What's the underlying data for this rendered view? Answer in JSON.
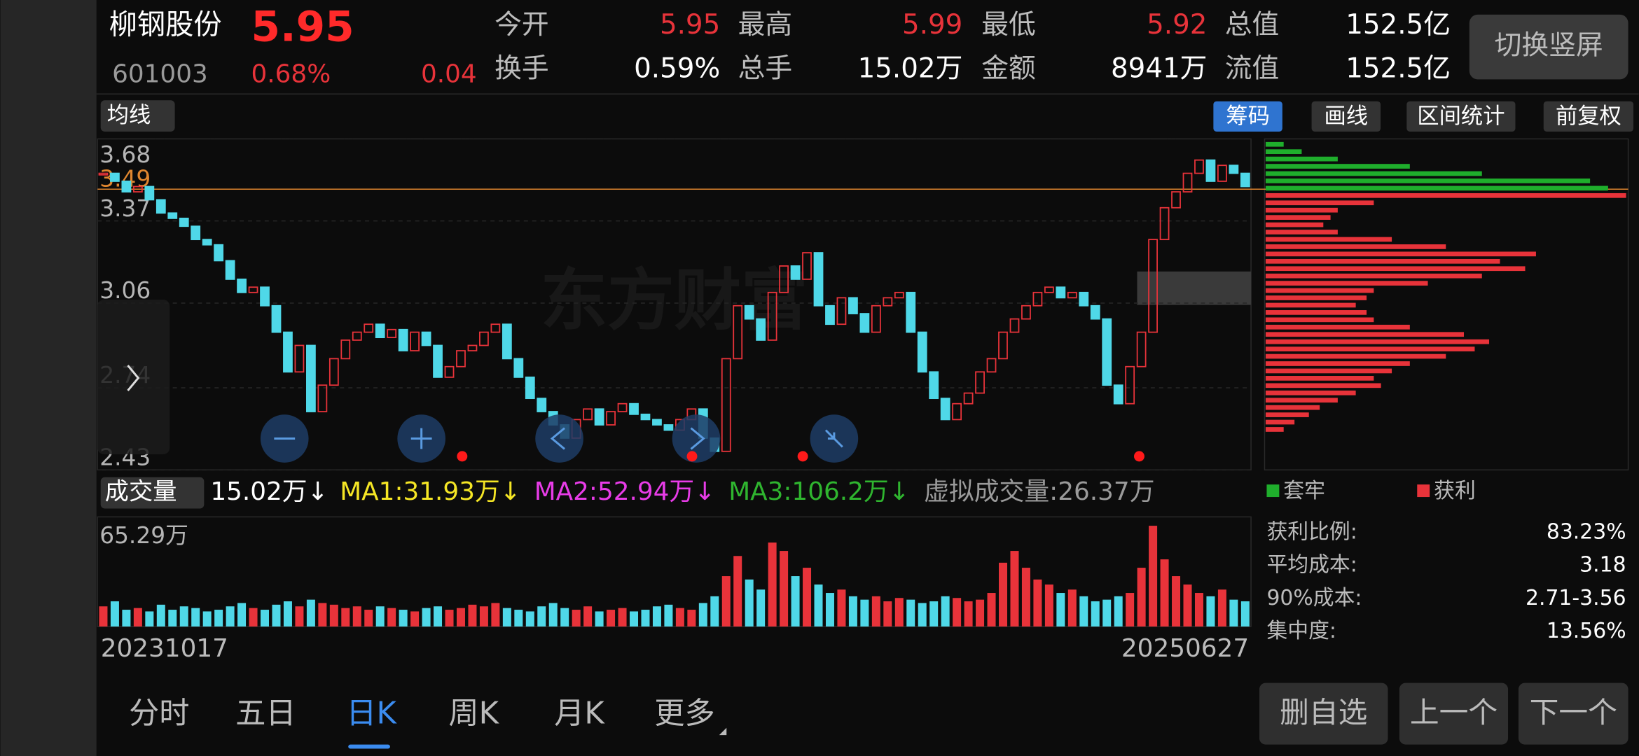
{
  "header": {
    "name": "柳钢股份",
    "price": "5.95",
    "code": "601003",
    "change_pct": "0.68%",
    "change": "0.04",
    "button": "切换竖屏",
    "stats": [
      {
        "label": "今开",
        "value": "5.95",
        "color": "#e8333a"
      },
      {
        "label": "最高",
        "value": "5.99",
        "color": "#e8333a"
      },
      {
        "label": "最低",
        "value": "5.92",
        "color": "#e8333a"
      },
      {
        "label": "总值",
        "value": "152.5亿",
        "color": "#ffffff"
      },
      {
        "label": "换手",
        "value": "0.59%",
        "color": "#ffffff"
      },
      {
        "label": "总手",
        "value": "15.02万",
        "color": "#ffffff"
      },
      {
        "label": "金额",
        "value": "8941万",
        "color": "#ffffff"
      },
      {
        "label": "流值",
        "value": "152.5亿",
        "color": "#ffffff"
      }
    ]
  },
  "toolbar": {
    "ma_menu": "均线",
    "tools": [
      "筹码",
      "画线",
      "区间统计",
      "前复权"
    ]
  },
  "chart_data": [
    {
      "type": "candlestick",
      "up_color": "#e8333a",
      "down_color": "#4fd8e8",
      "ylim": [
        2.43,
        3.68
      ],
      "yticks": [
        3.68,
        3.37,
        3.06,
        2.74,
        2.43
      ],
      "price_line": 3.49,
      "x_labels": [
        "20231017",
        "20250627"
      ],
      "close": [
        3.55,
        3.52,
        3.48,
        3.5,
        3.45,
        3.4,
        3.38,
        3.35,
        3.3,
        3.28,
        3.22,
        3.15,
        3.1,
        3.12,
        3.05,
        2.95,
        2.8,
        2.9,
        2.65,
        2.75,
        2.85,
        2.92,
        2.95,
        2.98,
        2.93,
        2.96,
        2.88,
        2.95,
        2.9,
        2.78,
        2.82,
        2.88,
        2.9,
        2.95,
        2.98,
        2.85,
        2.78,
        2.7,
        2.65,
        2.6,
        2.55,
        2.62,
        2.66,
        2.6,
        2.65,
        2.68,
        2.64,
        2.62,
        2.6,
        2.58,
        2.62,
        2.66,
        2.55,
        2.5,
        2.85,
        3.05,
        3.0,
        2.92,
        3.1,
        3.2,
        3.15,
        3.25,
        3.05,
        2.98,
        3.08,
        3.02,
        2.95,
        3.05,
        3.08,
        3.1,
        2.95,
        2.8,
        2.7,
        2.62,
        2.68,
        2.72,
        2.8,
        2.85,
        2.95,
        3.0,
        3.05,
        3.1,
        3.12,
        3.08,
        3.1,
        3.05,
        3.0,
        2.75,
        2.68,
        2.82,
        2.95,
        3.3,
        3.42,
        3.48,
        3.55,
        3.6,
        3.52,
        3.58,
        3.55,
        3.5
      ]
    },
    {
      "type": "bar",
      "menu": "成交量",
      "ylim": [
        0,
        65.29
      ],
      "yticks": [
        {
          "value": 65.29,
          "label": "65.29万"
        }
      ],
      "legend": [
        {
          "text": "15.02万↓",
          "color": "#ffffff"
        },
        {
          "text": "MA1:31.93万↓",
          "color": "#f5e625"
        },
        {
          "text": "MA2:52.94万↓",
          "color": "#e83ce8"
        },
        {
          "text": "MA3:106.2万↓",
          "color": "#2fb52f"
        },
        {
          "text": "虚拟成交量:26.37万",
          "color": "#9a9a9a"
        }
      ],
      "values": [
        12,
        15,
        10,
        11,
        9,
        13,
        10,
        12,
        11,
        9,
        10,
        12,
        14,
        11,
        10,
        13,
        15,
        12,
        16,
        14,
        13,
        11,
        12,
        10,
        12,
        11,
        10,
        9,
        11,
        12,
        10,
        11,
        13,
        12,
        14,
        11,
        10,
        9,
        12,
        14,
        11,
        10,
        12,
        9,
        10,
        11,
        9,
        10,
        12,
        13,
        11,
        10,
        14,
        18,
        30,
        42,
        28,
        22,
        50,
        45,
        30,
        35,
        25,
        20,
        22,
        18,
        16,
        18,
        15,
        17,
        16,
        14,
        15,
        18,
        17,
        15,
        16,
        20,
        38,
        45,
        35,
        28,
        25,
        20,
        22,
        18,
        15,
        16,
        18,
        20,
        35,
        60,
        40,
        30,
        25,
        20,
        18,
        22,
        16,
        15
      ]
    },
    {
      "type": "bar",
      "orientation": "horizontal",
      "series": [
        {
          "name": "套牢",
          "color": "#1fae2c",
          "values": [
            5,
            10,
            20,
            40,
            60,
            90,
            95
          ]
        },
        {
          "name": "获利",
          "color": "#e8333a",
          "values": [
            100,
            30,
            20,
            18,
            16,
            20,
            35,
            50,
            75,
            65,
            72,
            60,
            45,
            30,
            28,
            25,
            28,
            30,
            40,
            55,
            62,
            58,
            50,
            40,
            35,
            30,
            32,
            25,
            20,
            15,
            12,
            8,
            5
          ]
        }
      ],
      "stats": [
        {
          "label": "获利比例:",
          "value": "83.23%"
        },
        {
          "label": "平均成本:",
          "value": "3.18"
        },
        {
          "label": "90%成本:",
          "value": "2.71-3.56"
        },
        {
          "label": "集中度:",
          "value": "13.56%"
        }
      ]
    }
  ],
  "tabs": {
    "items": [
      "分时",
      "五日",
      "日K",
      "周K",
      "月K",
      "更多"
    ],
    "active": 2
  },
  "buttons": [
    "删自选",
    "上一个",
    "下一个"
  ]
}
